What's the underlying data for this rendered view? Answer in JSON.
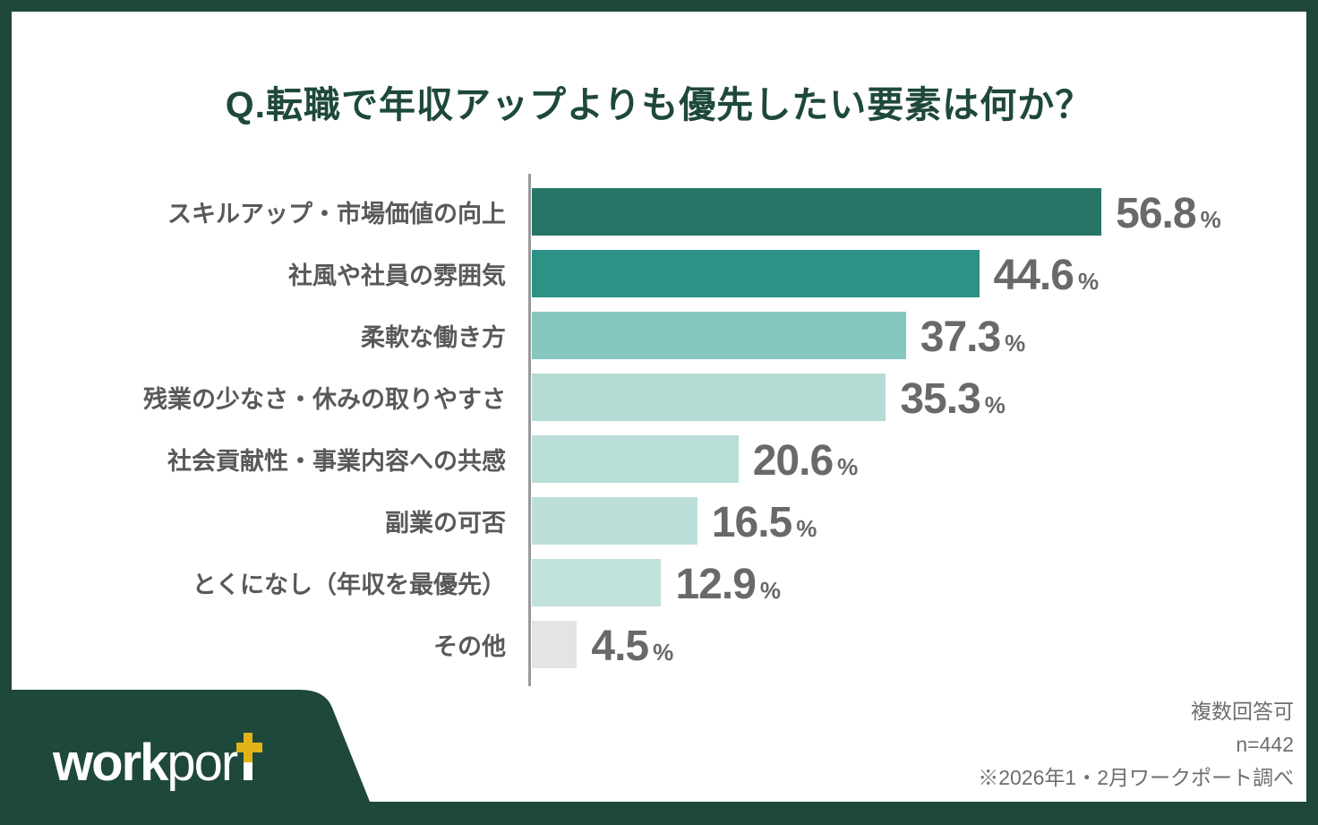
{
  "page": {
    "title": "Q.転職で年収アップよりも優先したい要素は何か？",
    "frame_color": "#1e483b",
    "background_color": "#ffffff"
  },
  "chart_data": {
    "type": "bar",
    "orientation": "horizontal",
    "title": "Q.転職で年収アップよりも優先したい要素は何か？",
    "unit": "%",
    "xlim": [
      0,
      60
    ],
    "grid": false,
    "legend": "none",
    "categories": [
      "スキルアップ・市場価値の向上",
      "社風や社員の雰囲気",
      "柔軟な働き方",
      "残業の少なさ・休みの取りやすさ",
      "社会貢献性・事業内容への共感",
      "副業の可否",
      "とくになし（年収を最優先）",
      "その他"
    ],
    "values": [
      56.8,
      44.6,
      37.3,
      35.3,
      20.6,
      16.5,
      12.9,
      4.5
    ],
    "bar_colors": [
      "#287568",
      "#2e9185",
      "#85c7bf",
      "#b5dbd5",
      "#b9ddd7",
      "#bddfd9",
      "#c1e1db",
      "#e4e4e4"
    ],
    "axis_line_color": "#999999",
    "value_label_color": "#696969",
    "category_label_color": "#595959"
  },
  "footer": {
    "logo": {
      "text_bold": "work",
      "text_por": "por",
      "text_t": "t",
      "plus_color": "#e2b219",
      "shape_color": "#1e483b",
      "text_color": "#ffffff"
    },
    "notes": [
      "複数回答可",
      "n=442",
      "※2026年1・2月ワークポート調べ"
    ]
  }
}
